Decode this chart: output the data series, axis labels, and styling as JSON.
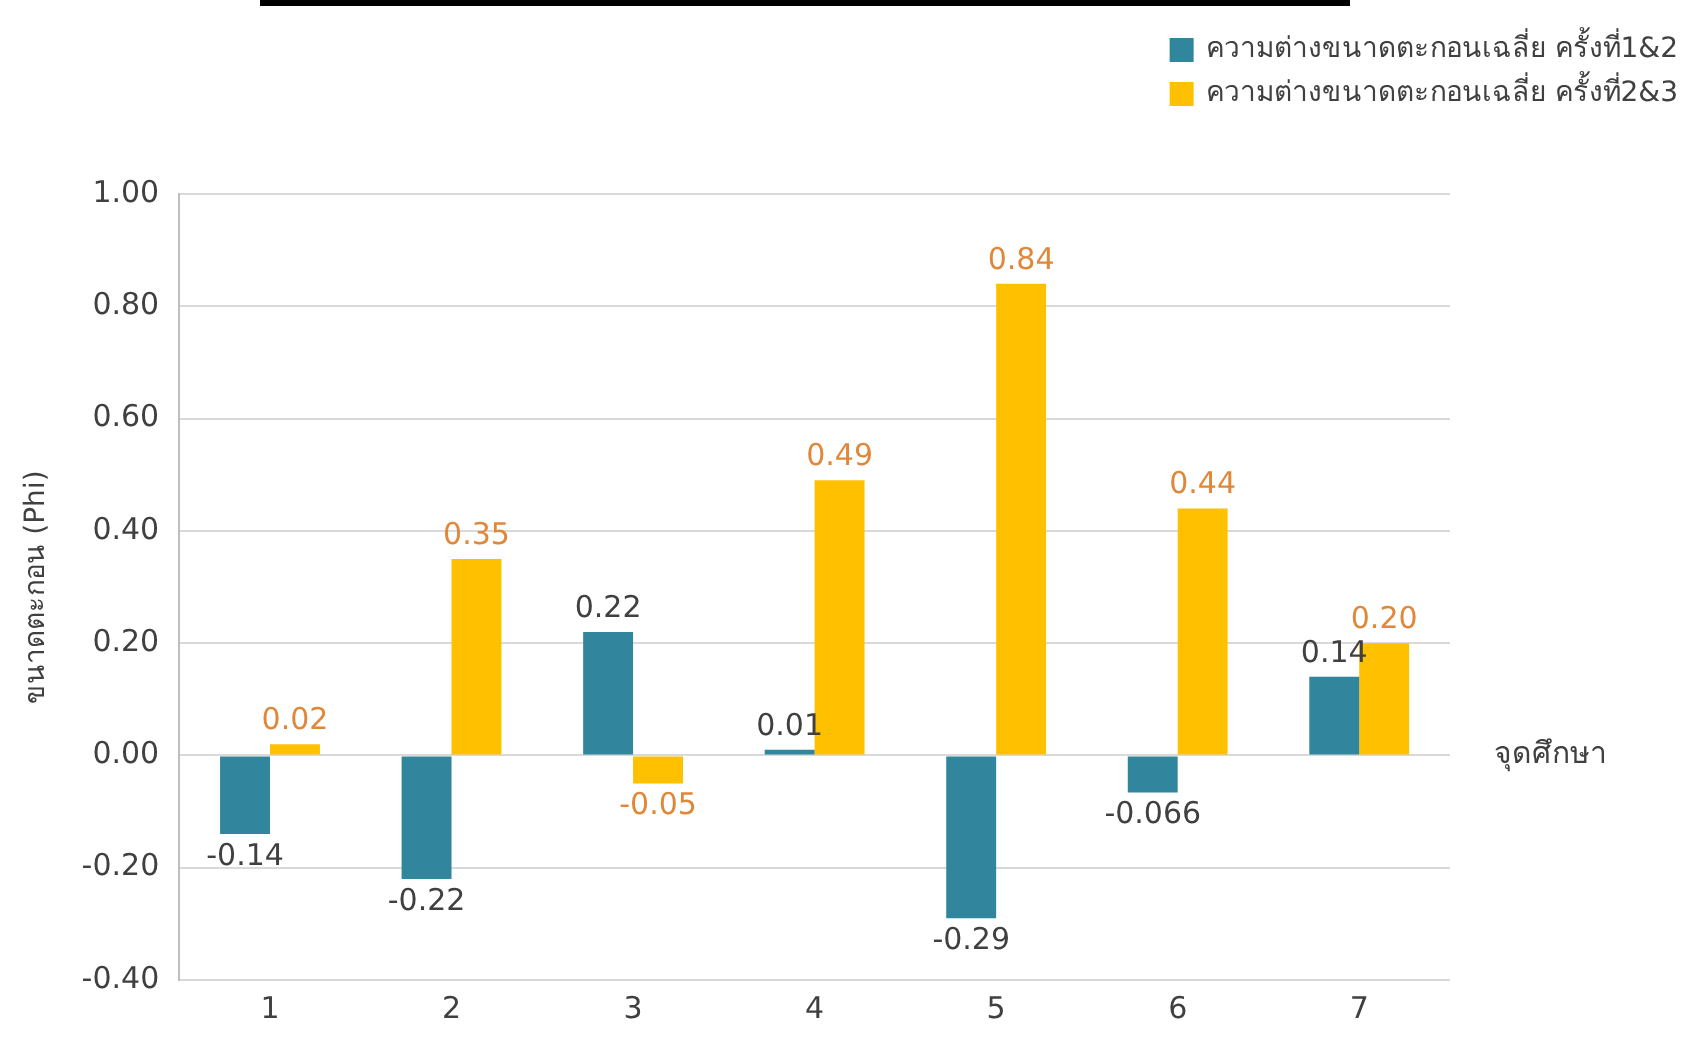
{
  "chart_data": {
    "type": "bar",
    "categories": [
      "1",
      "2",
      "3",
      "4",
      "5",
      "6",
      "7"
    ],
    "series": [
      {
        "name": "ความต่างขนาดตะกอนเฉลี่ย ครั้งที่1&2",
        "color": "#31859c",
        "values": [
          -0.14,
          -0.22,
          0.22,
          0.01,
          -0.29,
          -0.066,
          0.14
        ],
        "value_labels": [
          "-0.14",
          "-0.22",
          "0.22",
          "0.01",
          "-0.29",
          "-0.066",
          "0.14"
        ]
      },
      {
        "name": "ความต่างขนาดตะกอนเฉลี่ย ครั้งที่2&3",
        "color": "#ffc000",
        "values": [
          0.02,
          0.35,
          -0.05,
          0.49,
          0.84,
          0.44,
          0.2
        ],
        "value_labels": [
          "0.02",
          "0.35",
          "-0.05",
          "0.49",
          "0.84",
          "0.44",
          "0.20"
        ]
      }
    ],
    "xlabel": "จุดศึกษา",
    "ylabel": "ขนาดตะกอน (Phi)",
    "ylim": [
      -0.4,
      1
    ],
    "yticks": [
      {
        "value": -0.4,
        "label": "-0.40"
      },
      {
        "value": -0.2,
        "label": "-0.20"
      },
      {
        "value": 0,
        "label": "0.00"
      },
      {
        "value": 0.2,
        "label": "0.20"
      },
      {
        "value": 0.4,
        "label": "0.40"
      },
      {
        "value": 0.6,
        "label": "0.60"
      },
      {
        "value": 0.8,
        "label": "0.80"
      },
      {
        "value": 1,
        "label": "1.00"
      }
    ],
    "grid": "y",
    "legend": "top right"
  }
}
